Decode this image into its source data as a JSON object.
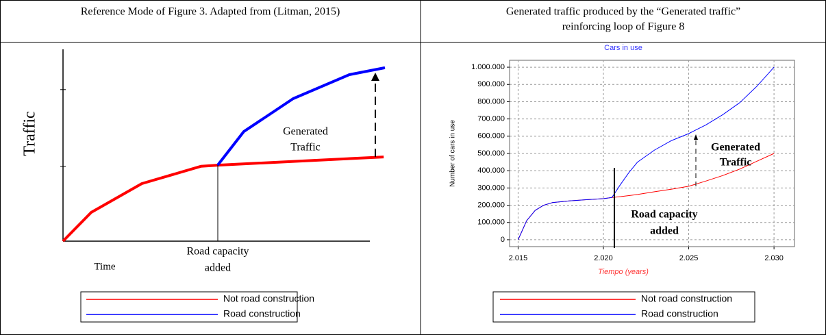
{
  "table": {
    "headers": [
      [
        "Reference Mode of Figure 3. Adapted from (Litman, 2015)"
      ],
      [
        "Generated traffic produced by the “Generated traffic”",
        "reinforcing loop of Figure 8"
      ]
    ]
  },
  "chart_data": [
    {
      "type": "line",
      "xlabel": "Time",
      "ylabel": "Traffic",
      "xlim": [
        0,
        10
      ],
      "ylim": [
        0,
        10
      ],
      "yticks": [
        3.9,
        7.9
      ],
      "grid": false,
      "annotations": [
        {
          "text": [
            "Generated",
            "Traffic"
          ]
        },
        {
          "text": [
            "Road capacity",
            "added"
          ]
        }
      ],
      "series": [
        {
          "name": "Not road construction",
          "color": "#ff0000",
          "x": [
            0,
            0.92,
            2.57,
            4.49,
            5.04,
            10.45
          ],
          "values": [
            0,
            1.5,
            3.0,
            3.9,
            3.96,
            4.39
          ]
        },
        {
          "name": "Road construction",
          "color": "#0000ff",
          "x": [
            5.04,
            5.89,
            7.5,
            9.33,
            10.49
          ],
          "values": [
            3.96,
            5.71,
            7.43,
            8.68,
            9.04
          ]
        }
      ]
    },
    {
      "type": "line",
      "title": "Cars in use",
      "xlabel": "Tiempo (years)",
      "ylabel": "Number of cars in use",
      "xlim": [
        2014.5,
        2031.2
      ],
      "ylim": [
        -40000,
        1040000
      ],
      "grid": true,
      "xticks": [
        {
          "value": 2015,
          "label": "2.015"
        },
        {
          "value": 2020,
          "label": "2.020"
        },
        {
          "value": 2025,
          "label": "2.025"
        },
        {
          "value": 2030,
          "label": "2.030"
        }
      ],
      "yticks": [
        0,
        {
          "value": 100000,
          "label": "100.000"
        },
        {
          "value": 200000,
          "label": "200.000"
        },
        {
          "value": 300000,
          "label": "300.000"
        },
        {
          "value": 400000,
          "label": "400.000"
        },
        {
          "value": 500000,
          "label": "500.000"
        },
        {
          "value": 600000,
          "label": "600.000"
        },
        {
          "value": 700000,
          "label": "700.000"
        },
        {
          "value": 800000,
          "label": "800.000"
        },
        {
          "value": 900000,
          "label": "900.000"
        },
        {
          "value": 1000000,
          "label": "1.000.000"
        }
      ],
      "annotations": [
        {
          "text": [
            "Generated",
            "Traffic"
          ]
        },
        {
          "text": [
            "Road capacity",
            "added"
          ]
        }
      ],
      "x": [
        2015,
        2015.5,
        2016,
        2016.5,
        2017,
        2018,
        2019,
        2020,
        2020.5,
        2021,
        2021.5,
        2022,
        2023,
        2024,
        2025,
        2026,
        2027,
        2028,
        2029,
        2030
      ],
      "series": [
        {
          "name": "Not road construction",
          "color": "#ff0000",
          "values": [
            0,
            110000,
            170000,
            200000,
            215000,
            225000,
            232000,
            238000,
            245000,
            250000,
            256000,
            262000,
            278000,
            293000,
            310000,
            340000,
            372000,
            410000,
            455000,
            500000
          ]
        },
        {
          "name": "Road construction",
          "color": "#0000ff",
          "values": [
            0,
            110000,
            170000,
            200000,
            215000,
            225000,
            232000,
            238000,
            245000,
            320000,
            390000,
            450000,
            520000,
            575000,
            615000,
            665000,
            725000,
            795000,
            890000,
            1000000
          ]
        }
      ]
    }
  ]
}
